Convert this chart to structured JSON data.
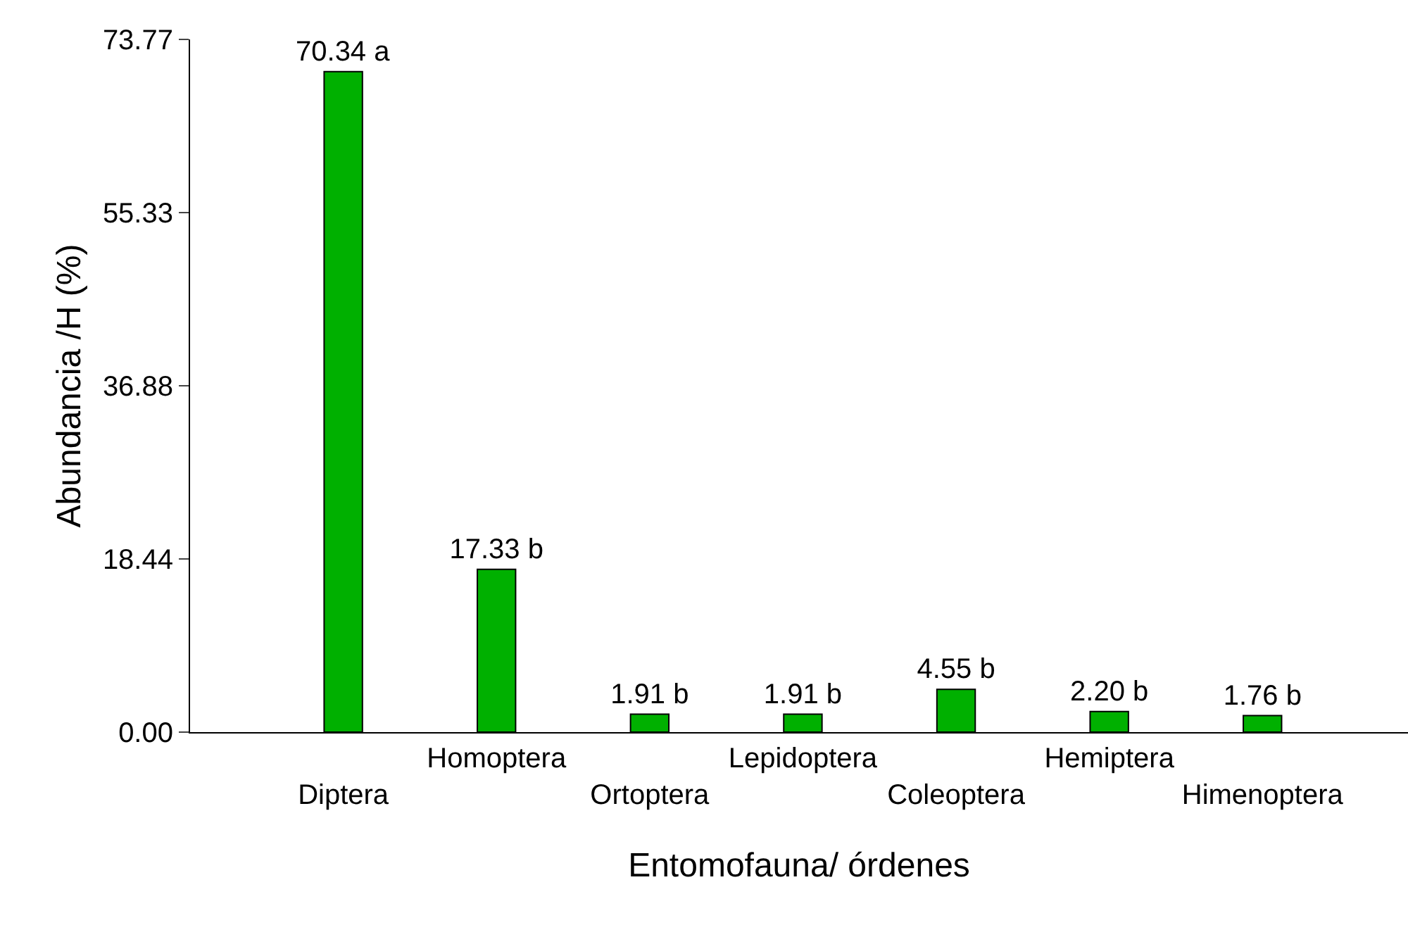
{
  "chart_data": {
    "type": "bar",
    "xlabel": "Entomofauna/ órdenes",
    "ylabel": "Abundancia /H (%)",
    "categories": [
      "Diptera",
      "Homoptera",
      "Ortoptera",
      "Lepidoptera",
      "Coleoptera",
      "Hemiptera",
      "Himenoptera"
    ],
    "values": [
      70.34,
      17.33,
      1.91,
      1.91,
      4.55,
      2.2,
      1.76
    ],
    "value_labels": [
      "70.34 a",
      "17.33 b",
      "1.91 b",
      "1.91 b",
      "4.55 b",
      "2.20 b",
      "1.76 b"
    ],
    "color": "#00b000",
    "ylim": [
      0,
      73.77
    ],
    "yticks": [
      {
        "value": 0,
        "label": "0.00"
      },
      18.44,
      36.88,
      55.33,
      73.77
    ],
    "grid": false
  }
}
